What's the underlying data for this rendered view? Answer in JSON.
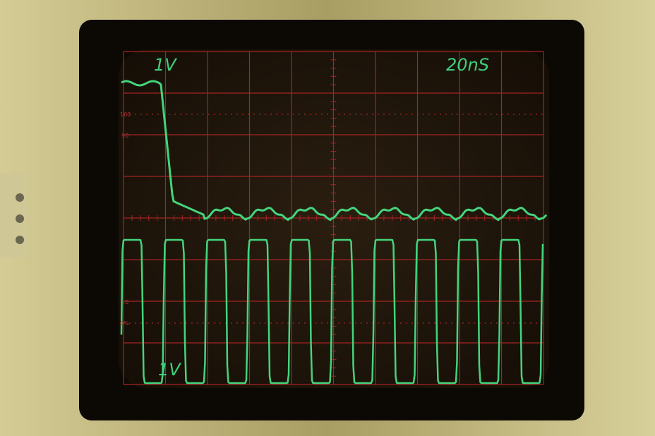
{
  "screen": {
    "top_left_scale": "1V",
    "timebase": "20nS",
    "bottom_left_scale": "1V",
    "graticule_labels": {
      "top_percent": "100",
      "upper_percent": "90",
      "lower_percent": "10",
      "bottom_percent": "0%"
    }
  }
}
